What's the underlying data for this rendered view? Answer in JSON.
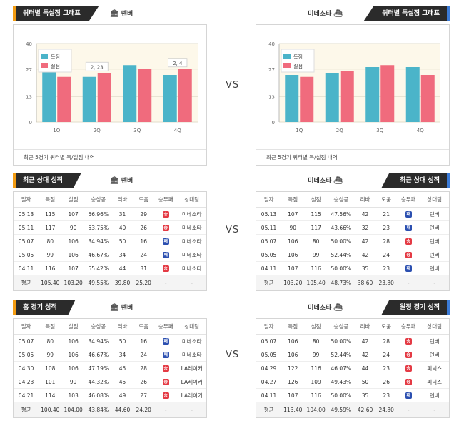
{
  "vs_label": "VS",
  "note": "최근 5경기 쿼터별 득/실점 내역",
  "chart_labels": {
    "scored": "득점",
    "conceded": "실점"
  },
  "chart_left": {
    "tab_title": "쿼터별 득실점 그래프",
    "team": "덴버",
    "team_icon": "bank-icon",
    "chart_data": {
      "type": "bar",
      "categories": [
        "1Q",
        "2Q",
        "3Q",
        "4Q"
      ],
      "series": [
        {
          "name": "득점",
          "values": [
            26,
            23,
            29,
            24
          ]
        },
        {
          "name": "실점",
          "values": [
            23,
            25,
            27,
            27
          ]
        }
      ],
      "ylim": [
        0,
        40
      ],
      "yticks": [
        "0",
        "13",
        "27",
        "40"
      ],
      "annotations": [
        {
          "category": "2Q",
          "text": "2, 23"
        },
        {
          "category": "4Q",
          "text": "2, 4"
        }
      ],
      "colors": [
        "#4bb4c9",
        "#f06b7d"
      ],
      "legend": "top-left",
      "grid": true
    }
  },
  "chart_right": {
    "tab_title": "쿼터별 득실점 그래프",
    "team": "미네소타",
    "team_icon": "ship-icon",
    "chart_data": {
      "type": "bar",
      "categories": [
        "1Q",
        "2Q",
        "3Q",
        "4Q"
      ],
      "series": [
        {
          "name": "득점",
          "values": [
            24,
            25,
            28,
            28
          ]
        },
        {
          "name": "실점",
          "values": [
            23,
            26,
            29,
            24
          ]
        }
      ],
      "ylim": [
        0,
        40
      ],
      "yticks": [
        "0",
        "13",
        "27",
        "40"
      ],
      "colors": [
        "#4bb4c9",
        "#f06b7d"
      ],
      "legend": "top-left",
      "grid": true
    }
  },
  "headers": [
    "일자",
    "득점",
    "실점",
    "승성공",
    "리바",
    "도움",
    "승무패",
    "상대팀"
  ],
  "colors": {
    "win": "#e43a44",
    "loss": "#2b4fb0"
  },
  "recent_left": {
    "tab_title": "최근 상대 성적",
    "team": "덴버",
    "rows": [
      [
        "05.13",
        "115",
        "107",
        "56.96%",
        "31",
        "29",
        "승",
        "미네소타"
      ],
      [
        "05.11",
        "117",
        "90",
        "53.75%",
        "40",
        "26",
        "승",
        "미네소타"
      ],
      [
        "05.07",
        "80",
        "106",
        "34.94%",
        "50",
        "16",
        "패",
        "미네소타"
      ],
      [
        "05.05",
        "99",
        "106",
        "46.67%",
        "34",
        "24",
        "패",
        "미네소타"
      ],
      [
        "04.11",
        "116",
        "107",
        "55.42%",
        "44",
        "31",
        "승",
        "미네소타"
      ]
    ],
    "avg": [
      "평균",
      "105.40",
      "103.20",
      "49.55%",
      "39.80",
      "25.20",
      "-",
      "-"
    ]
  },
  "recent_right": {
    "tab_title": "최근 상대 성적",
    "team": "미네소타",
    "rows": [
      [
        "05.13",
        "107",
        "115",
        "47.56%",
        "42",
        "21",
        "패",
        "덴버"
      ],
      [
        "05.11",
        "90",
        "117",
        "43.66%",
        "32",
        "23",
        "패",
        "덴버"
      ],
      [
        "05.07",
        "106",
        "80",
        "50.00%",
        "42",
        "28",
        "승",
        "덴버"
      ],
      [
        "05.05",
        "106",
        "99",
        "52.44%",
        "42",
        "24",
        "승",
        "덴버"
      ],
      [
        "04.11",
        "107",
        "116",
        "50.00%",
        "35",
        "23",
        "패",
        "덴버"
      ]
    ],
    "avg": [
      "평균",
      "103.20",
      "105.40",
      "48.73%",
      "38.60",
      "23.80",
      "-",
      "-"
    ]
  },
  "home_left": {
    "tab_title": "홈 경기 성적",
    "team": "덴버",
    "rows": [
      [
        "05.07",
        "80",
        "106",
        "34.94%",
        "50",
        "16",
        "패",
        "미네소타"
      ],
      [
        "05.05",
        "99",
        "106",
        "46.67%",
        "34",
        "24",
        "패",
        "미네소타"
      ],
      [
        "04.30",
        "108",
        "106",
        "47.19%",
        "45",
        "28",
        "승",
        "LA레이커"
      ],
      [
        "04.23",
        "101",
        "99",
        "44.32%",
        "45",
        "26",
        "승",
        "LA레이커"
      ],
      [
        "04.21",
        "114",
        "103",
        "46.08%",
        "49",
        "27",
        "승",
        "LA레이커"
      ]
    ],
    "avg": [
      "평균",
      "100.40",
      "104.00",
      "43.84%",
      "44.60",
      "24.20",
      "-",
      "-"
    ]
  },
  "away_right": {
    "tab_title": "원정 경기 성적",
    "team": "미네소타",
    "rows": [
      [
        "05.07",
        "106",
        "80",
        "50.00%",
        "42",
        "28",
        "승",
        "덴버"
      ],
      [
        "05.05",
        "106",
        "99",
        "52.44%",
        "42",
        "24",
        "승",
        "덴버"
      ],
      [
        "04.29",
        "122",
        "116",
        "46.07%",
        "44",
        "23",
        "승",
        "피닉스"
      ],
      [
        "04.27",
        "126",
        "109",
        "49.43%",
        "50",
        "26",
        "승",
        "피닉스"
      ],
      [
        "04.11",
        "107",
        "116",
        "50.00%",
        "35",
        "23",
        "패",
        "덴버"
      ]
    ],
    "avg": [
      "평균",
      "113.40",
      "104.00",
      "49.59%",
      "42.60",
      "24.80",
      "-",
      "-"
    ]
  }
}
